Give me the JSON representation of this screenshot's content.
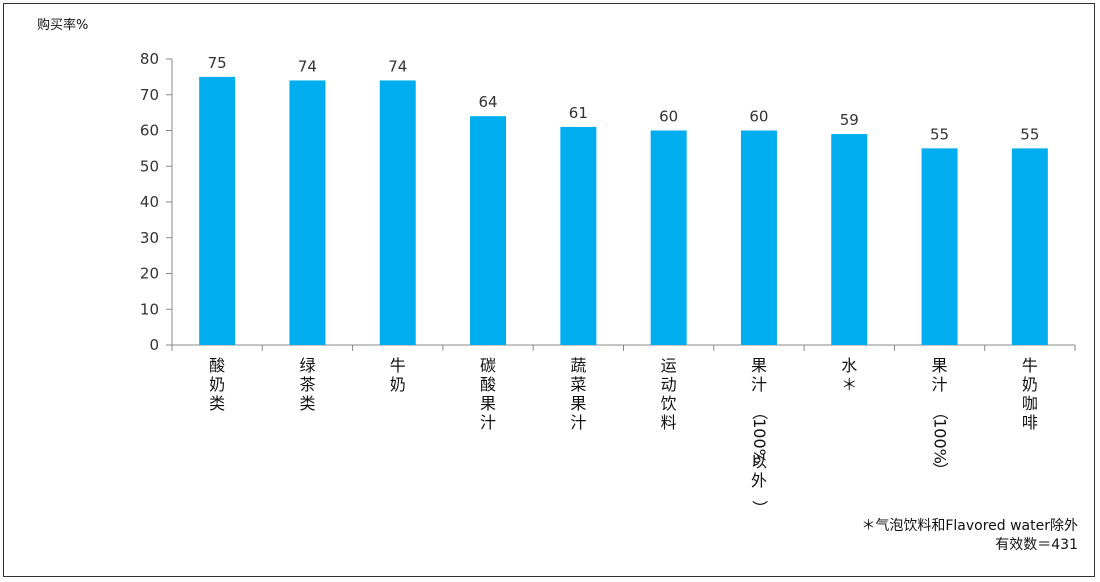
{
  "chart_data": {
    "type": "bar",
    "ylabel": "购买率%",
    "categories": [
      "酸奶类",
      "绿茶类",
      "牛奶",
      "碳酸果汁",
      "蔬菜果汁",
      "运动饮料",
      "果汁（100%以外）",
      "水＊",
      "果汁（100%）",
      "牛奶咖啡"
    ],
    "values": [
      75,
      74,
      74,
      64,
      61,
      60,
      60,
      59,
      55,
      55
    ],
    "data_labels": [
      "75",
      "74",
      "74",
      "64",
      "61",
      "60",
      "60",
      "59",
      "55",
      "55"
    ],
    "ylim": [
      0,
      80
    ],
    "yticks": [
      0,
      10,
      20,
      30,
      40,
      50,
      60,
      70,
      80
    ],
    "grid": false,
    "bar_color": "#00AEEF"
  },
  "notes": {
    "line1": "＊气泡饮料和Flavored water除外",
    "line2": "有效数＝431"
  }
}
